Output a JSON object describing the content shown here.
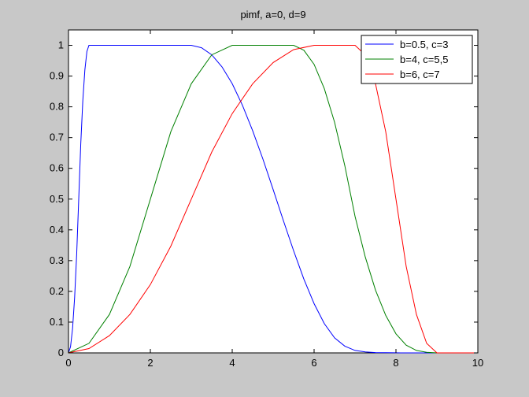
{
  "chart_data": {
    "type": "line",
    "title": "pimf, a=0, d=9",
    "xlabel": "",
    "ylabel": "",
    "xlim": [
      0,
      10
    ],
    "ylim": [
      0,
      1.05
    ],
    "xticks": [
      0,
      2,
      4,
      6,
      8,
      10
    ],
    "xtick_labels": [
      "0",
      "2",
      "4",
      "6",
      "8",
      "10"
    ],
    "yticks": [
      0,
      0.1,
      0.2,
      0.3,
      0.4,
      0.5,
      0.6,
      0.7,
      0.8,
      0.9,
      1
    ],
    "ytick_labels": [
      "0",
      "0.1",
      "0.2",
      "0.3",
      "0.4",
      "0.5",
      "0.6",
      "0.7",
      "0.8",
      "0.9",
      "1"
    ],
    "grid": false,
    "legend_position": "top-right",
    "series": [
      {
        "name": "b=0.5,  c=3",
        "color": "#0000ff",
        "x": [
          0,
          0.05,
          0.1,
          0.15,
          0.2,
          0.25,
          0.3,
          0.35,
          0.4,
          0.45,
          0.5,
          1,
          2,
          3,
          3.25,
          3.5,
          3.75,
          4,
          4.25,
          4.5,
          4.75,
          5,
          5.25,
          5.5,
          5.75,
          6,
          6.25,
          6.5,
          6.75,
          7,
          7.25,
          7.5,
          7.75,
          8,
          8.25,
          8.5,
          8.75,
          9,
          9.5,
          10
        ],
        "y": [
          0,
          0.02,
          0.08,
          0.18,
          0.32,
          0.5,
          0.68,
          0.82,
          0.92,
          0.98,
          1,
          1,
          1,
          1,
          0.992,
          0.969,
          0.93,
          0.875,
          0.805,
          0.722,
          0.63,
          0.531,
          0.43,
          0.332,
          0.24,
          0.16,
          0.095,
          0.049,
          0.022,
          0.008,
          0.003,
          0.001,
          0.0005,
          0.0002,
          0.0001,
          0.0001,
          3e-05,
          0,
          0,
          0
        ]
      },
      {
        "name": "b=4, c=5,5",
        "color": "#008000",
        "x": [
          0,
          0.5,
          1,
          1.5,
          2,
          2.5,
          3,
          3.5,
          4,
          4.5,
          5,
          5.5,
          5.75,
          6,
          6.25,
          6.5,
          6.75,
          7,
          7.25,
          7.5,
          7.75,
          8,
          8.25,
          8.5,
          8.75,
          9,
          9.5,
          10
        ],
        "y": [
          0,
          0.031,
          0.125,
          0.281,
          0.5,
          0.719,
          0.875,
          0.969,
          1,
          1,
          1,
          1,
          0.984,
          0.938,
          0.859,
          0.75,
          0.609,
          0.444,
          0.312,
          0.204,
          0.122,
          0.062,
          0.025,
          0.008,
          0.002,
          0,
          0,
          0
        ]
      },
      {
        "name": "b=6, c=7",
        "color": "#ff0000",
        "x": [
          0,
          0.5,
          1,
          1.5,
          2,
          2.5,
          3,
          3.5,
          4,
          4.5,
          5,
          5.5,
          6,
          6.5,
          7,
          7.25,
          7.5,
          7.75,
          8,
          8.25,
          8.5,
          8.75,
          9,
          9.5,
          10
        ],
        "y": [
          0,
          0.014,
          0.056,
          0.125,
          0.222,
          0.347,
          0.5,
          0.653,
          0.778,
          0.875,
          0.944,
          0.986,
          1,
          1,
          1,
          0.969,
          0.875,
          0.719,
          0.5,
          0.281,
          0.125,
          0.031,
          0,
          0,
          0
        ]
      }
    ]
  }
}
